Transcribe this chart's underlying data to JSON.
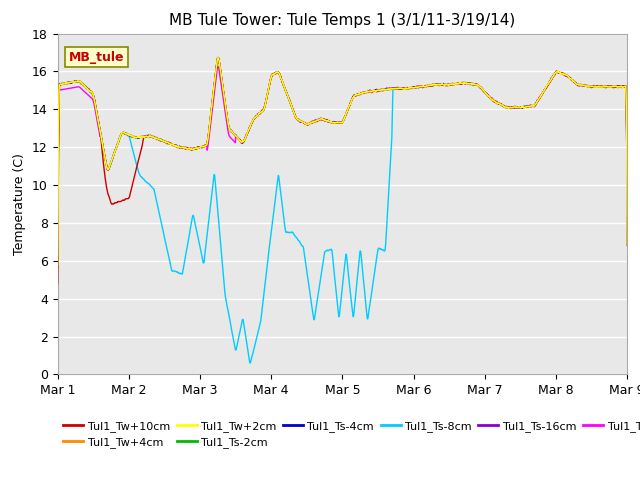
{
  "title": "MB Tule Tower: Tule Temps 1 (3/1/11-3/19/14)",
  "ylabel": "Temperature (C)",
  "annotation": "MB_tule",
  "ylim": [
    0,
    18
  ],
  "yticks": [
    0,
    2,
    4,
    6,
    8,
    10,
    12,
    14,
    16,
    18
  ],
  "xtick_labels": [
    "Mar 1",
    "Mar 2",
    "Mar 3",
    "Mar 4",
    "Mar 5",
    "Mar 6",
    "Mar 7",
    "Mar 8",
    "Mar 9"
  ],
  "series_colors": {
    "Tul1_Tw+10cm": "#cc0000",
    "Tul1_Tw+4cm": "#ff8800",
    "Tul1_Tw+2cm": "#ffff00",
    "Tul1_Ts-2cm": "#00bb00",
    "Tul1_Ts-4cm": "#0000cc",
    "Tul1_Ts-8cm": "#00ccff",
    "Tul1_Ts-16cm": "#8800cc",
    "Tul1_Ts-32cm": "#ff00ff"
  },
  "fig_facecolor": "#ffffff",
  "ax_facecolor": "#e8e8e8",
  "grid_color": "#ffffff",
  "title_fontsize": 11,
  "label_fontsize": 9,
  "tick_fontsize": 9,
  "legend_fontsize": 8
}
